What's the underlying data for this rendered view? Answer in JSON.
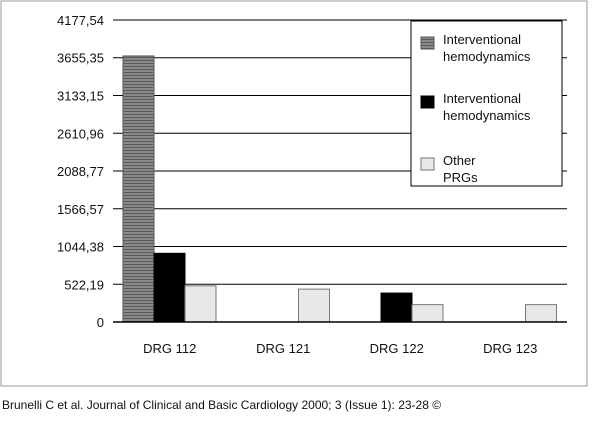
{
  "chart_data": {
    "type": "bar",
    "categories": [
      "DRG 112",
      "DRG 121",
      "DRG 122",
      "DRG 123"
    ],
    "series": [
      {
        "name": "Interventional hemodynamics",
        "values": [
          3680,
          0,
          0,
          0
        ],
        "color": "#888888",
        "pattern": "hatched-gray"
      },
      {
        "name": "Interventional hemodynamics",
        "values": [
          950,
          0,
          400,
          0
        ],
        "color": "#000000",
        "pattern": "solid"
      },
      {
        "name": "Other PRGs",
        "values": [
          500,
          455,
          240,
          240
        ],
        "color": "#e8e8e8",
        "pattern": "light"
      }
    ],
    "y_ticks": [
      "0",
      "522,19",
      "1044,38",
      "1566,57",
      "2088,77",
      "2610,96",
      "3133,15",
      "3655,35",
      "4177,54"
    ],
    "y_tick_values": [
      0,
      522.19,
      1044.38,
      1566.57,
      2088.77,
      2610.96,
      3133.15,
      3655.35,
      4177.54
    ],
    "ylim": [
      0,
      4177.54
    ],
    "grid": true,
    "legend_position": "top-right",
    "title": "",
    "xlabel": "",
    "ylabel": ""
  },
  "caption": "Brunelli C et al. Journal of Clinical and Basic Cardiology 2000; 3 (Issue 1): 23-28 ©"
}
